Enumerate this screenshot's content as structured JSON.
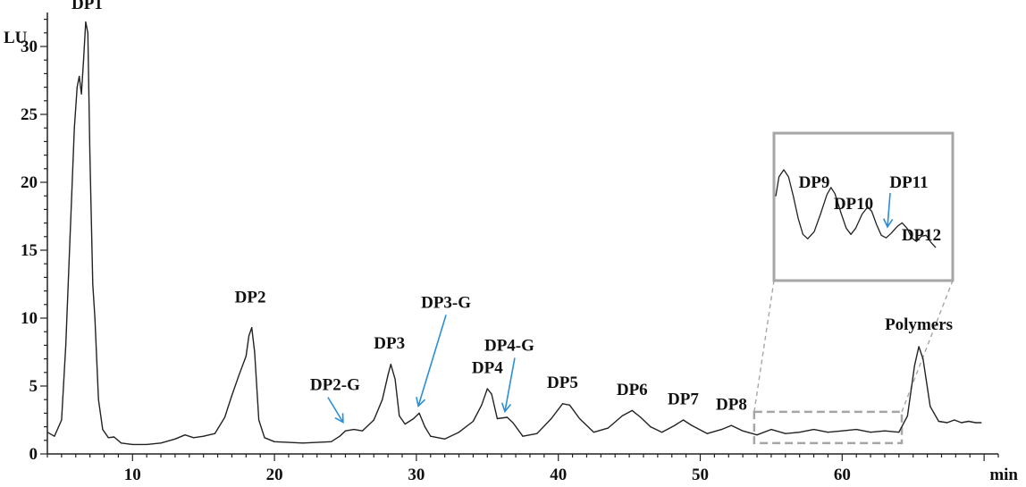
{
  "chart_data": {
    "type": "line",
    "title": "",
    "xlabel": "min",
    "ylabel": "LU",
    "xlim": [
      4,
      71
    ],
    "ylim": [
      0,
      32.5
    ],
    "x_ticks": [
      10,
      20,
      30,
      40,
      50,
      60
    ],
    "y_ticks": [
      0,
      5,
      10,
      15,
      20,
      25,
      30
    ],
    "grid": false,
    "colors": {
      "trace": "#222222",
      "arrow": "#2a8fd6",
      "zoom_box": "#a6a6a6"
    },
    "series": [
      {
        "points": [
          [
            4.0,
            1.6
          ],
          [
            4.5,
            1.3
          ],
          [
            5.0,
            2.5
          ],
          [
            5.3,
            8.0
          ],
          [
            5.6,
            16.0
          ],
          [
            5.9,
            24.0
          ],
          [
            6.1,
            27.0
          ],
          [
            6.25,
            27.8
          ],
          [
            6.4,
            26.5
          ],
          [
            6.55,
            29.0
          ],
          [
            6.7,
            31.8
          ],
          [
            6.85,
            31.0
          ],
          [
            7.0,
            22.0
          ],
          [
            7.2,
            12.5
          ],
          [
            7.35,
            10.0
          ],
          [
            7.6,
            4.0
          ],
          [
            7.9,
            1.8
          ],
          [
            8.3,
            1.2
          ],
          [
            8.7,
            1.25
          ],
          [
            9.2,
            0.8
          ],
          [
            10.0,
            0.7
          ],
          [
            11.0,
            0.7
          ],
          [
            12.0,
            0.8
          ],
          [
            13.0,
            1.1
          ],
          [
            13.7,
            1.4
          ],
          [
            14.3,
            1.2
          ],
          [
            15.0,
            1.3
          ],
          [
            15.8,
            1.5
          ],
          [
            16.5,
            2.7
          ],
          [
            17.0,
            4.3
          ],
          [
            17.5,
            5.8
          ],
          [
            18.0,
            7.2
          ],
          [
            18.2,
            8.7
          ],
          [
            18.4,
            9.3
          ],
          [
            18.6,
            7.5
          ],
          [
            18.9,
            2.5
          ],
          [
            19.3,
            1.2
          ],
          [
            20.0,
            0.9
          ],
          [
            22.0,
            0.8
          ],
          [
            24.0,
            0.9
          ],
          [
            24.6,
            1.3
          ],
          [
            25.0,
            1.7
          ],
          [
            25.6,
            1.8
          ],
          [
            26.2,
            1.7
          ],
          [
            27.0,
            2.5
          ],
          [
            27.6,
            4.0
          ],
          [
            28.0,
            5.8
          ],
          [
            28.2,
            6.6
          ],
          [
            28.5,
            5.5
          ],
          [
            28.8,
            2.8
          ],
          [
            29.2,
            2.2
          ],
          [
            29.8,
            2.6
          ],
          [
            30.2,
            3.0
          ],
          [
            30.6,
            2.0
          ],
          [
            31.0,
            1.3
          ],
          [
            32.0,
            1.1
          ],
          [
            33.0,
            1.6
          ],
          [
            34.0,
            2.4
          ],
          [
            34.6,
            3.6
          ],
          [
            35.0,
            4.8
          ],
          [
            35.3,
            4.4
          ],
          [
            35.7,
            2.6
          ],
          [
            36.4,
            2.7
          ],
          [
            36.8,
            2.3
          ],
          [
            37.5,
            1.3
          ],
          [
            38.5,
            1.5
          ],
          [
            39.5,
            2.6
          ],
          [
            40.3,
            3.7
          ],
          [
            40.8,
            3.6
          ],
          [
            41.5,
            2.6
          ],
          [
            42.5,
            1.6
          ],
          [
            43.5,
            1.9
          ],
          [
            44.5,
            2.8
          ],
          [
            45.2,
            3.2
          ],
          [
            45.8,
            2.7
          ],
          [
            46.5,
            2.0
          ],
          [
            47.3,
            1.6
          ],
          [
            48.2,
            2.1
          ],
          [
            48.8,
            2.5
          ],
          [
            49.4,
            2.1
          ],
          [
            50.5,
            1.5
          ],
          [
            51.5,
            1.8
          ],
          [
            52.2,
            2.1
          ],
          [
            53.0,
            1.7
          ],
          [
            54.0,
            1.4
          ],
          [
            55.0,
            1.8
          ],
          [
            56.0,
            1.5
          ],
          [
            57.0,
            1.6
          ],
          [
            58.0,
            1.8
          ],
          [
            59.0,
            1.6
          ],
          [
            60.0,
            1.7
          ],
          [
            61.0,
            1.8
          ],
          [
            62.0,
            1.6
          ],
          [
            63.0,
            1.7
          ],
          [
            64.0,
            1.6
          ],
          [
            64.6,
            2.8
          ],
          [
            65.1,
            6.5
          ],
          [
            65.4,
            7.9
          ],
          [
            65.7,
            7.0
          ],
          [
            66.2,
            3.5
          ],
          [
            66.8,
            2.4
          ],
          [
            67.4,
            2.3
          ],
          [
            67.9,
            2.5
          ],
          [
            68.4,
            2.3
          ],
          [
            68.9,
            2.4
          ],
          [
            69.4,
            2.3
          ],
          [
            69.8,
            2.3
          ]
        ]
      }
    ],
    "peak_labels": [
      {
        "text": "DP1",
        "x": 6.8,
        "y": 32.1
      },
      {
        "text": "DP2",
        "x": 18.3,
        "y": 10.5
      },
      {
        "text": "DP2-G",
        "x": 24.9,
        "y": 1.8,
        "arrow": true
      },
      {
        "text": "DP3",
        "x": 28.1,
        "y": 7.1
      },
      {
        "text": "DP3-G",
        "x": 30.2,
        "y": 3.0,
        "arrow": true
      },
      {
        "text": "DP4",
        "x": 35.0,
        "y": 5.3
      },
      {
        "text": "DP4-G",
        "x": 36.3,
        "y": 2.6,
        "arrow": true
      },
      {
        "text": "DP5",
        "x": 40.3,
        "y": 4.2
      },
      {
        "text": "DP6",
        "x": 45.2,
        "y": 3.7
      },
      {
        "text": "DP7",
        "x": 48.8,
        "y": 3.0
      },
      {
        "text": "DP8",
        "x": 52.2,
        "y": 2.6
      },
      {
        "text": "Polymers",
        "x": 65.4,
        "y": 8.5
      }
    ],
    "inset": {
      "zoom_x": [
        53.8,
        64.2
      ],
      "zoom_y": [
        0.8,
        3.1
      ],
      "labels": [
        "DP9",
        "DP10",
        "DP11",
        "DP12"
      ],
      "trace": [
        [
          0.0,
          0.7
        ],
        [
          0.02,
          0.92
        ],
        [
          0.05,
          1.0
        ],
        [
          0.08,
          0.92
        ],
        [
          0.11,
          0.7
        ],
        [
          0.14,
          0.45
        ],
        [
          0.17,
          0.27
        ],
        [
          0.2,
          0.22
        ],
        [
          0.24,
          0.3
        ],
        [
          0.28,
          0.5
        ],
        [
          0.32,
          0.72
        ],
        [
          0.345,
          0.8
        ],
        [
          0.37,
          0.73
        ],
        [
          0.41,
          0.5
        ],
        [
          0.44,
          0.34
        ],
        [
          0.47,
          0.27
        ],
        [
          0.5,
          0.34
        ],
        [
          0.54,
          0.5
        ],
        [
          0.575,
          0.58
        ],
        [
          0.6,
          0.53
        ],
        [
          0.63,
          0.38
        ],
        [
          0.66,
          0.26
        ],
        [
          0.69,
          0.23
        ],
        [
          0.72,
          0.28
        ],
        [
          0.76,
          0.36
        ],
        [
          0.79,
          0.4
        ],
        [
          0.82,
          0.34
        ],
        [
          0.85,
          0.23
        ],
        [
          0.88,
          0.19
        ],
        [
          0.91,
          0.25
        ],
        [
          0.94,
          0.26
        ],
        [
          0.97,
          0.18
        ],
        [
          1.0,
          0.12
        ]
      ]
    }
  }
}
